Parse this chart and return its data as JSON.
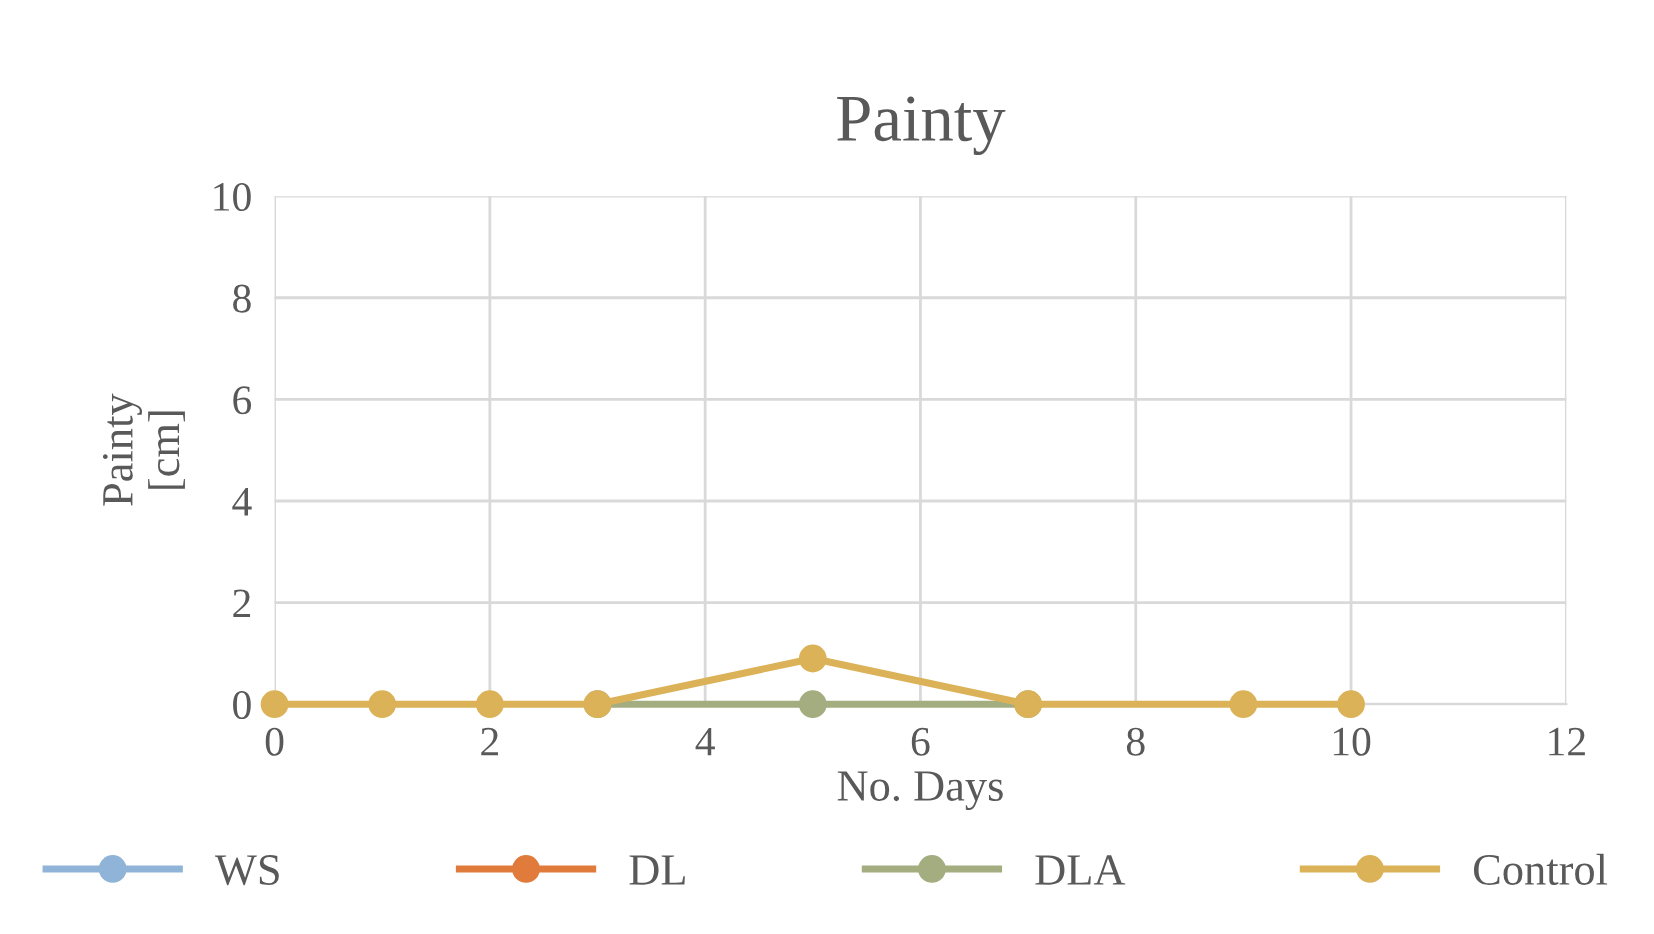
{
  "chart_data": {
    "type": "line",
    "title": "Painty",
    "xlabel": "No. Days",
    "ylabel": "Painty\n[cm]",
    "x": [
      0,
      1,
      2,
      3,
      5,
      7,
      9,
      10
    ],
    "series": [
      {
        "name": "WS",
        "color": "#8fb4d8",
        "values": [
          null,
          null,
          null,
          null,
          null,
          null,
          null,
          null
        ]
      },
      {
        "name": "DL",
        "color": "#e07b3c",
        "values": [
          null,
          null,
          null,
          null,
          null,
          null,
          null,
          null
        ]
      },
      {
        "name": "DLA",
        "color": "#a3ad7f",
        "values": [
          null,
          null,
          null,
          0,
          0,
          0,
          null,
          null
        ]
      },
      {
        "name": "Control",
        "color": "#dbb257",
        "values": [
          0,
          0,
          0,
          0,
          0.9,
          0,
          0,
          0
        ]
      }
    ],
    "xlim": [
      0,
      12
    ],
    "xticks": [
      0,
      2,
      4,
      6,
      8,
      10,
      12
    ],
    "ylim": [
      0,
      10
    ],
    "yticks": [
      0,
      2,
      4,
      6,
      8,
      10
    ],
    "grid": true,
    "legend": "bottom",
    "marker": "circle",
    "line_style": "solid"
  }
}
